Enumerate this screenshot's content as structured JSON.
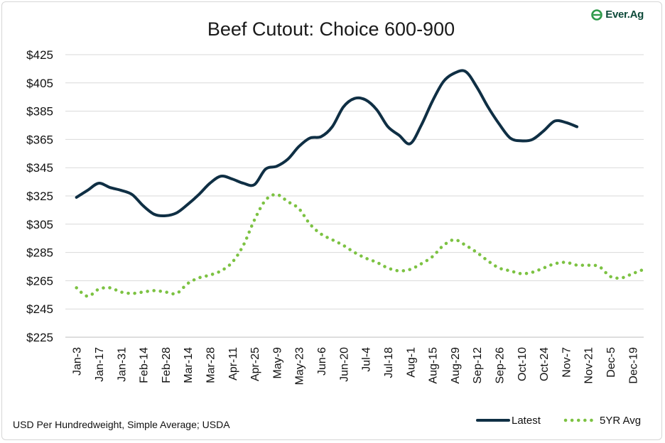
{
  "brand": {
    "name": "Ever.Ag",
    "color": "#2e9a4a"
  },
  "chart_data": {
    "type": "line",
    "title": "Beef Cutout: Choice 600-900",
    "source": "USD Per Hundredweight, Simple Average; USDA",
    "ylim": [
      225,
      425
    ],
    "yticks": [
      225,
      245,
      265,
      285,
      305,
      325,
      345,
      365,
      385,
      405,
      425
    ],
    "ytick_prefix": "$",
    "xtick_labels": [
      "Jan-3",
      "Jan-17",
      "Jan-31",
      "Feb-14",
      "Feb-28",
      "Mar-14",
      "Mar-28",
      "Apr-11",
      "Apr-25",
      "May-9",
      "May-23",
      "Jun-6",
      "Jun-20",
      "Jul-4",
      "Jul-18",
      "Aug-1",
      "Aug-15",
      "Aug-29",
      "Sep-12",
      "Sep-26",
      "Oct-10",
      "Oct-24",
      "Nov-7",
      "Nov-21",
      "Dec-5",
      "Dec-19"
    ],
    "grid": true,
    "legend": "bottom-right",
    "series": [
      {
        "name": "Latest",
        "style": "solid",
        "color": "#0f2f44",
        "values": [
          324,
          329,
          334,
          331,
          329,
          326,
          318,
          312,
          311,
          313,
          319,
          326,
          334,
          339,
          337,
          334,
          333,
          344,
          346,
          351,
          360,
          366,
          367,
          374,
          388,
          394,
          393,
          386,
          374,
          368,
          362,
          375,
          392,
          406,
          412,
          413,
          402,
          388,
          376,
          366,
          364,
          365,
          371,
          378,
          377,
          374
        ]
      },
      {
        "name": "5YR Avg",
        "style": "dotted",
        "color": "#7cc242",
        "values": [
          260,
          254,
          259,
          260,
          257,
          256,
          257,
          258,
          257,
          256,
          263,
          267,
          269,
          272,
          278,
          290,
          308,
          322,
          326,
          321,
          316,
          305,
          298,
          294,
          290,
          285,
          281,
          278,
          274,
          272,
          273,
          277,
          282,
          290,
          294,
          290,
          285,
          279,
          274,
          272,
          270,
          271,
          274,
          277,
          278,
          276,
          276,
          275,
          268,
          267,
          270,
          273
        ]
      }
    ]
  }
}
